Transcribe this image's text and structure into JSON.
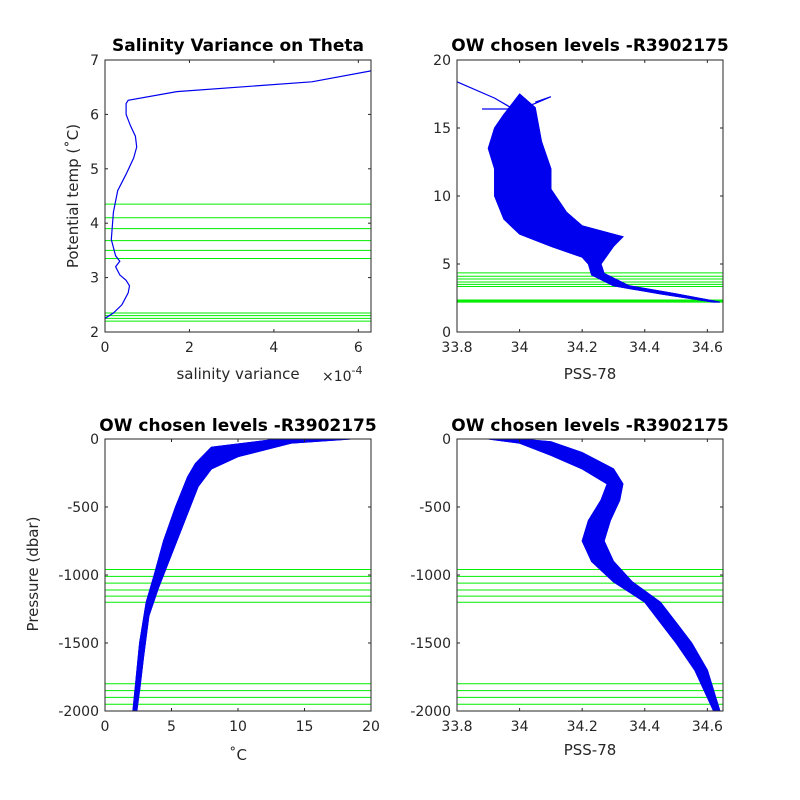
{
  "colors": {
    "profile": "#0000ee",
    "levels": "#00ee00",
    "axis": "#262626"
  },
  "chart_data": [
    {
      "id": "p1",
      "type": "line",
      "title": "Salinity Variance on Theta",
      "xlabel": "salinity variance",
      "x_exponent_label": "×10",
      "x_exponent_value": "-4",
      "ylabel": "Potential temp (˚C)",
      "xlim": [
        0,
        6.3
      ],
      "ylim": [
        2,
        7
      ],
      "xticks": [
        0,
        2,
        4,
        6
      ],
      "yticks": [
        2,
        3,
        4,
        5,
        6,
        7
      ],
      "xtick_labels": [
        "0",
        "2",
        "4",
        "6"
      ],
      "ytick_labels": [
        "2",
        "3",
        "4",
        "5",
        "6",
        "7"
      ],
      "series": [
        {
          "points": [
            [
              0.0,
              2.25
            ],
            [
              0.2,
              2.35
            ],
            [
              0.4,
              2.5
            ],
            [
              0.55,
              2.72
            ],
            [
              0.58,
              2.85
            ],
            [
              0.5,
              2.95
            ],
            [
              0.35,
              3.05
            ],
            [
              0.25,
              3.2
            ],
            [
              0.35,
              3.3
            ],
            [
              0.25,
              3.4
            ],
            [
              0.15,
              3.7
            ],
            [
              0.2,
              4.2
            ],
            [
              0.3,
              4.6
            ],
            [
              0.5,
              4.9
            ],
            [
              0.68,
              5.2
            ],
            [
              0.75,
              5.4
            ],
            [
              0.72,
              5.6
            ],
            [
              0.6,
              5.8
            ],
            [
              0.5,
              6.0
            ],
            [
              0.5,
              6.2
            ],
            [
              0.55,
              6.26
            ],
            [
              1.7,
              6.42
            ],
            [
              4.9,
              6.6
            ],
            [
              6.3,
              6.8
            ]
          ]
        }
      ],
      "levels": [
        2.2,
        2.25,
        2.3,
        2.35,
        3.35,
        3.5,
        3.68,
        3.9,
        4.1,
        4.35
      ]
    },
    {
      "id": "p2",
      "type": "line",
      "title": "OW chosen levels -R3902175",
      "xlabel": "PSS-78",
      "ylabel": "",
      "xlim": [
        33.8,
        34.65
      ],
      "ylim": [
        0,
        20
      ],
      "xticks": [
        33.8,
        34,
        34.2,
        34.4,
        34.6
      ],
      "yticks": [
        0,
        5,
        10,
        15,
        20
      ],
      "xtick_labels": [
        "33.8",
        "34",
        "34.2",
        "34.4",
        "34.6"
      ],
      "ytick_labels": [
        "0",
        "5",
        "10",
        "15",
        "20"
      ],
      "band": {
        "left": [
          [
            34.62,
            2.2
          ],
          [
            34.45,
            2.8
          ],
          [
            34.3,
            3.4
          ],
          [
            34.23,
            4.2
          ],
          [
            34.22,
            5.0
          ],
          [
            34.2,
            5.5
          ],
          [
            34.1,
            6.3
          ],
          [
            34.0,
            7.2
          ],
          [
            33.95,
            8.3
          ],
          [
            33.92,
            10.0
          ],
          [
            33.92,
            12.0
          ],
          [
            33.9,
            13.5
          ],
          [
            33.92,
            15.0
          ],
          [
            33.95,
            16.0
          ]
        ],
        "right": [
          [
            34.64,
            2.2
          ],
          [
            34.5,
            2.8
          ],
          [
            34.35,
            3.4
          ],
          [
            34.27,
            4.3
          ],
          [
            34.26,
            5.0
          ],
          [
            34.3,
            6.3
          ],
          [
            34.33,
            7.0
          ],
          [
            34.2,
            7.8
          ],
          [
            34.15,
            8.8
          ],
          [
            34.1,
            10.5
          ],
          [
            34.1,
            12.0
          ],
          [
            34.07,
            14.0
          ],
          [
            34.05,
            16.5
          ],
          [
            34.0,
            17.5
          ]
        ]
      },
      "extra_series": [
        {
          "points": [
            [
              33.8,
              18.4
            ],
            [
              33.92,
              17.2
            ],
            [
              33.98,
              16.4
            ]
          ]
        },
        {
          "points": [
            [
              33.88,
              16.4
            ],
            [
              34.0,
              16.4
            ],
            [
              34.05,
              16.8
            ],
            [
              34.1,
              17.3
            ],
            [
              34.05,
              16.9
            ]
          ]
        }
      ],
      "levels": [
        2.2,
        2.25,
        2.3,
        2.35,
        3.35,
        3.5,
        3.68,
        3.9,
        4.1,
        4.35
      ]
    },
    {
      "id": "p3",
      "type": "line",
      "title": "OW chosen levels -R3902175",
      "xlabel": "˚C",
      "ylabel": "Pressure (dbar)",
      "xlim": [
        0,
        20
      ],
      "ylim": [
        -2000,
        0
      ],
      "xticks": [
        0,
        5,
        10,
        15,
        20
      ],
      "yticks": [
        -2000,
        -1500,
        -1000,
        -500,
        0
      ],
      "xtick_labels": [
        "0",
        "5",
        "10",
        "15",
        "20"
      ],
      "ytick_labels": [
        "-2000",
        "-1500",
        "-1000",
        "-500",
        "0"
      ],
      "band": {
        "left": [
          [
            13.0,
            0
          ],
          [
            8.0,
            -60
          ],
          [
            6.8,
            -180
          ],
          [
            6.2,
            -280
          ],
          [
            5.3,
            -500
          ],
          [
            4.4,
            -750
          ],
          [
            3.7,
            -1000
          ],
          [
            3.1,
            -1200
          ],
          [
            2.6,
            -1500
          ],
          [
            2.3,
            -1800
          ],
          [
            2.1,
            -2000
          ]
        ],
        "right": [
          [
            18.5,
            0
          ],
          [
            14.0,
            -30
          ],
          [
            10.0,
            -130
          ],
          [
            8.0,
            -220
          ],
          [
            7.0,
            -350
          ],
          [
            6.0,
            -600
          ],
          [
            4.8,
            -900
          ],
          [
            4.0,
            -1100
          ],
          [
            3.3,
            -1300
          ],
          [
            2.9,
            -1600
          ],
          [
            2.6,
            -1850
          ],
          [
            2.4,
            -2000
          ]
        ]
      },
      "levels": [
        -960,
        -1010,
        -1060,
        -1110,
        -1155,
        -1200,
        -1800,
        -1850,
        -1900,
        -1950
      ]
    },
    {
      "id": "p4",
      "type": "line",
      "title": "OW chosen levels -R3902175",
      "xlabel": "PSS-78",
      "ylabel": "",
      "xlim": [
        33.8,
        34.65
      ],
      "ylim": [
        -2000,
        0
      ],
      "xticks": [
        33.8,
        34,
        34.2,
        34.4,
        34.6
      ],
      "yticks": [
        -2000,
        -1500,
        -1000,
        -500,
        0
      ],
      "xtick_labels": [
        "33.8",
        "34",
        "34.2",
        "34.4",
        "34.6"
      ],
      "ytick_labels": [
        "-2000",
        "-1500",
        "-1000",
        "-500",
        "0"
      ],
      "band": {
        "left": [
          [
            33.9,
            0
          ],
          [
            34.0,
            -30
          ],
          [
            34.1,
            -120
          ],
          [
            34.2,
            -220
          ],
          [
            34.28,
            -330
          ],
          [
            34.26,
            -450
          ],
          [
            34.22,
            -600
          ],
          [
            34.2,
            -750
          ],
          [
            34.23,
            -900
          ],
          [
            34.3,
            -1050
          ],
          [
            34.4,
            -1200
          ],
          [
            34.45,
            -1350
          ],
          [
            34.5,
            -1500
          ],
          [
            34.56,
            -1700
          ],
          [
            34.62,
            -2000
          ]
        ],
        "right": [
          [
            34.0,
            0
          ],
          [
            34.1,
            -20
          ],
          [
            34.2,
            -100
          ],
          [
            34.3,
            -220
          ],
          [
            34.33,
            -330
          ],
          [
            34.32,
            -450
          ],
          [
            34.29,
            -600
          ],
          [
            34.27,
            -750
          ],
          [
            34.3,
            -900
          ],
          [
            34.36,
            -1050
          ],
          [
            34.45,
            -1200
          ],
          [
            34.5,
            -1350
          ],
          [
            34.55,
            -1500
          ],
          [
            34.6,
            -1700
          ],
          [
            34.64,
            -2000
          ]
        ]
      },
      "levels": [
        -960,
        -1010,
        -1060,
        -1110,
        -1155,
        -1200,
        -1800,
        -1850,
        -1900,
        -1950
      ]
    }
  ]
}
